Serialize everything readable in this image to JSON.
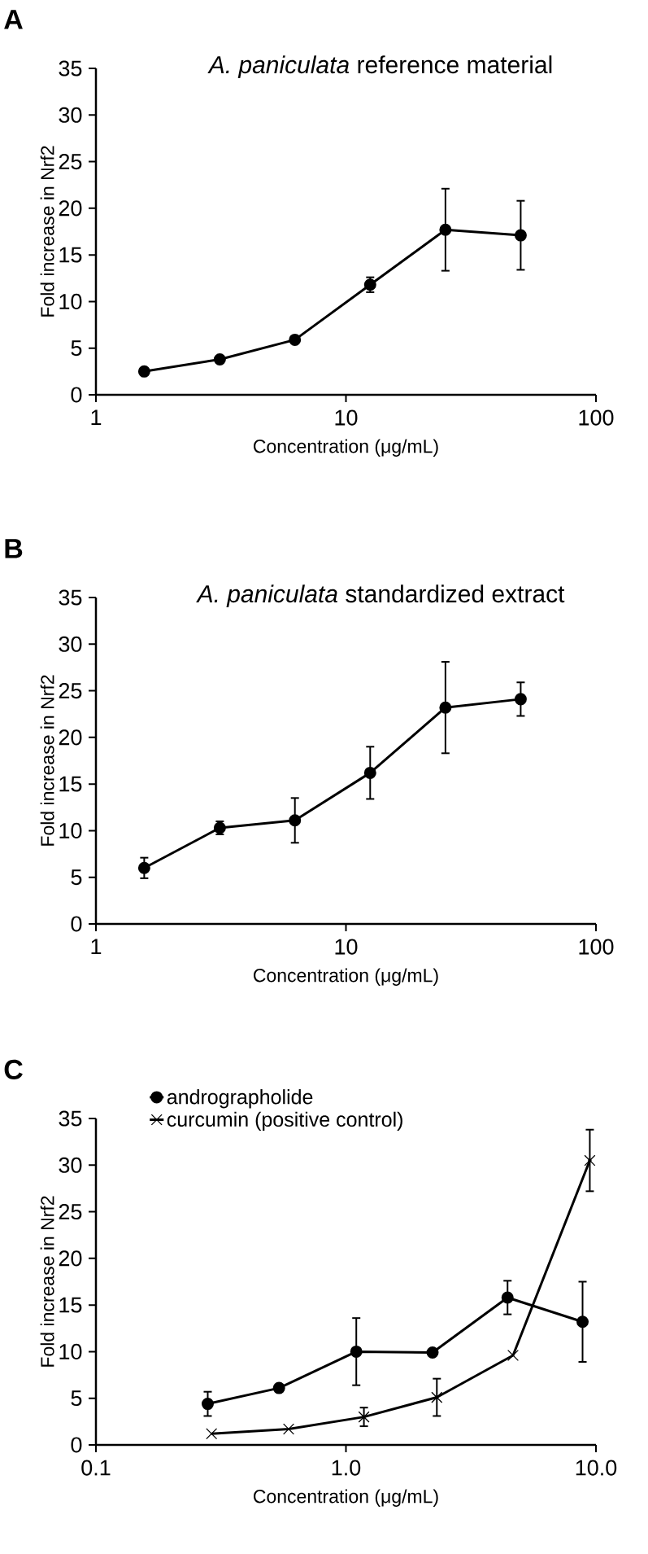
{
  "chart_data": [
    {
      "type": "line",
      "title": "*A. paniculata* reference material",
      "xlabel": "Concentration (μg/mL)",
      "ylabel": "Fold increase in Nrf2",
      "annotations": [
        "A"
      ],
      "x": [
        1.56,
        3.13,
        6.25,
        12.5,
        25,
        50
      ],
      "series": [
        {
          "color": "#000000",
          "values": [
            2.5,
            3.8,
            5.9,
            11.8,
            17.7,
            17.1
          ],
          "errors": [
            null,
            null,
            null,
            0.8,
            4.4,
            3.7
          ]
        }
      ],
      "xlim": [
        1,
        100
      ],
      "xticks": [
        1,
        10,
        100
      ],
      "ylim": [
        0,
        35
      ],
      "yticks": [
        0,
        5,
        10,
        15,
        20,
        25,
        30,
        35
      ],
      "log": "x",
      "marker": "circle"
    },
    {
      "type": "line",
      "title": "*A. paniculata* standardized extract",
      "xlabel": "Concentration (μg/mL)",
      "ylabel": "Fold increase in Nrf2",
      "annotations": [
        "B"
      ],
      "x": [
        1.56,
        3.13,
        6.25,
        12.5,
        25,
        50
      ],
      "series": [
        {
          "color": "#000000",
          "values": [
            6.0,
            10.3,
            11.1,
            16.2,
            23.2,
            24.1
          ],
          "errors": [
            1.1,
            0.7,
            2.4,
            2.8,
            4.9,
            1.8
          ]
        }
      ],
      "xlim": [
        1,
        100
      ],
      "xticks": [
        1,
        10,
        100
      ],
      "ylim": [
        0,
        35
      ],
      "yticks": [
        0,
        5,
        10,
        15,
        20,
        25,
        30,
        35
      ],
      "log": "x",
      "marker": "circle"
    },
    {
      "type": "line",
      "xlabel": "Concentration (μg/mL)",
      "ylabel": "Fold increase in Nrf2",
      "annotations": [
        "C"
      ],
      "series": [
        {
          "name": "andrographolide",
          "color": "#000000",
          "marker": "circle",
          "x": [
            0.28,
            0.54,
            1.1,
            2.22,
            4.43,
            8.84
          ],
          "values": [
            4.4,
            6.1,
            10.0,
            9.9,
            15.8,
            13.2
          ],
          "errors": [
            1.3,
            null,
            3.6,
            null,
            1.8,
            4.3
          ]
        },
        {
          "name": "curcumin (positive control)",
          "color": "#000000",
          "marker": "cross",
          "x": [
            0.29,
            0.59,
            1.18,
            2.31,
            4.66,
            9.45
          ],
          "values": [
            1.2,
            1.7,
            3.0,
            5.1,
            9.6,
            30.5
          ],
          "errors": [
            null,
            null,
            1.0,
            2.0,
            null,
            3.3
          ]
        }
      ],
      "xlim": [
        0.1,
        10
      ],
      "xticks": [
        0.1,
        {
          "value": 1,
          "label": "1.0"
        },
        {
          "value": 10,
          "label": "10.0"
        }
      ],
      "ylim": [
        0,
        35
      ],
      "yticks": [
        0,
        5,
        10,
        15,
        20,
        25,
        30,
        35
      ],
      "log": "x",
      "legend": "top left"
    }
  ]
}
